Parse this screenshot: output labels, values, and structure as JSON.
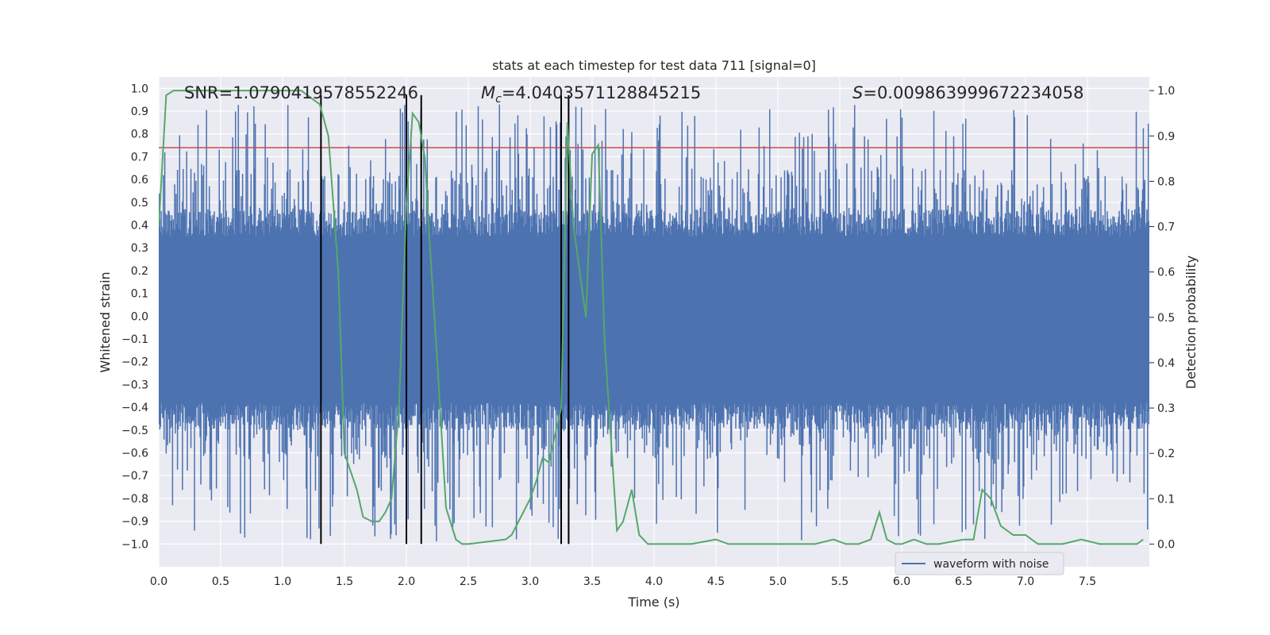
{
  "chart_data": {
    "type": "line",
    "title": "stats at each timestep for test data 711 [signal=0]",
    "xlabel": "Time (s)",
    "ylabel": "Whitened strain",
    "y2label": "Detection probability",
    "xlim": [
      0.0,
      8.0
    ],
    "ylim": [
      -1.1,
      1.05
    ],
    "y2lim": [
      -0.05,
      1.03
    ],
    "xticks": [
      "0.0",
      "0.5",
      "1.0",
      "1.5",
      "2.0",
      "2.5",
      "3.0",
      "3.5",
      "4.0",
      "4.5",
      "5.0",
      "5.5",
      "6.0",
      "6.5",
      "7.0",
      "7.5"
    ],
    "yticks": [
      "1.0",
      "0.9",
      "0.8",
      "0.7",
      "0.6",
      "0.5",
      "0.4",
      "0.3",
      "0.2",
      "0.1",
      "0.0",
      "-0.1",
      "-0.2",
      "-0.3",
      "-0.4",
      "-0.5",
      "-0.6",
      "-0.7",
      "-0.8",
      "-0.9",
      "-1.0"
    ],
    "y2ticks": [
      "1.0",
      "0.9",
      "0.8",
      "0.7",
      "0.6",
      "0.5",
      "0.4",
      "0.3",
      "0.2",
      "0.1",
      "0.0"
    ],
    "annotations": {
      "snr": "SNR=1.0790419578552246",
      "mc_symbol": "M",
      "mc_sub": "c",
      "mc_value": "=4.0403571128845215",
      "s_symbol": "S",
      "s_value": "=0.009863999672234058"
    },
    "legend": {
      "label": "waveform with noise",
      "position": "lower-right"
    },
    "colors": {
      "waveform": "#4c72b0",
      "probability": "#55a868",
      "threshold": "#c44e52",
      "markers": "#000000",
      "plot_bg": "#eaeaf2",
      "grid": "#ffffff"
    },
    "series": [
      {
        "name": "waveform with noise",
        "axis": "left",
        "style": "dense-noise",
        "envelope_upper": 0.35,
        "envelope_lower": -0.38,
        "peak_range": [
          0.6,
          0.93
        ],
        "trough_range": [
          -0.99,
          -0.6
        ]
      },
      {
        "name": "detection probability",
        "axis": "right",
        "x": [
          0.0,
          0.06,
          0.12,
          0.2,
          0.5,
          0.8,
          1.0,
          1.15,
          1.2,
          1.3,
          1.37,
          1.45,
          1.5,
          1.6,
          1.65,
          1.72,
          1.78,
          1.83,
          1.88,
          1.94,
          2.0,
          2.05,
          2.1,
          2.15,
          2.18,
          2.25,
          2.32,
          2.4,
          2.45,
          2.5,
          2.8,
          2.85,
          3.0,
          3.05,
          3.1,
          3.15,
          3.25,
          3.3,
          3.35,
          3.45,
          3.5,
          3.55,
          3.6,
          3.7,
          3.75,
          3.82,
          3.88,
          3.95,
          4.0,
          4.3,
          4.5,
          4.6,
          5.0,
          5.3,
          5.45,
          5.55,
          5.65,
          5.75,
          5.82,
          5.88,
          5.95,
          6.0,
          6.1,
          6.2,
          6.3,
          6.5,
          6.58,
          6.65,
          6.72,
          6.8,
          6.9,
          6.95,
          7.0,
          7.1,
          7.3,
          7.45,
          7.6,
          7.75,
          7.9,
          7.95
        ],
        "y": [
          0.7,
          0.99,
          1.0,
          1.0,
          1.0,
          1.0,
          1.0,
          1.0,
          0.99,
          0.97,
          0.9,
          0.6,
          0.2,
          0.12,
          0.06,
          0.05,
          0.05,
          0.07,
          0.1,
          0.3,
          0.75,
          0.95,
          0.93,
          0.85,
          0.7,
          0.4,
          0.08,
          0.01,
          0.0,
          0.0,
          0.01,
          0.02,
          0.1,
          0.14,
          0.19,
          0.18,
          0.3,
          0.93,
          0.7,
          0.5,
          0.86,
          0.88,
          0.45,
          0.03,
          0.05,
          0.12,
          0.02,
          0.0,
          0.0,
          0.0,
          0.01,
          0.0,
          0.0,
          0.0,
          0.01,
          0.0,
          0.0,
          0.01,
          0.07,
          0.01,
          0.0,
          0.0,
          0.01,
          0.0,
          0.0,
          0.01,
          0.01,
          0.12,
          0.1,
          0.04,
          0.02,
          0.02,
          0.02,
          0.0,
          0.0,
          0.01,
          0.0,
          0.0,
          0.0,
          0.01
        ]
      }
    ],
    "threshold_y": 0.74,
    "markers_x": [
      1.31,
      2.0,
      2.12,
      3.25,
      3.31
    ]
  }
}
